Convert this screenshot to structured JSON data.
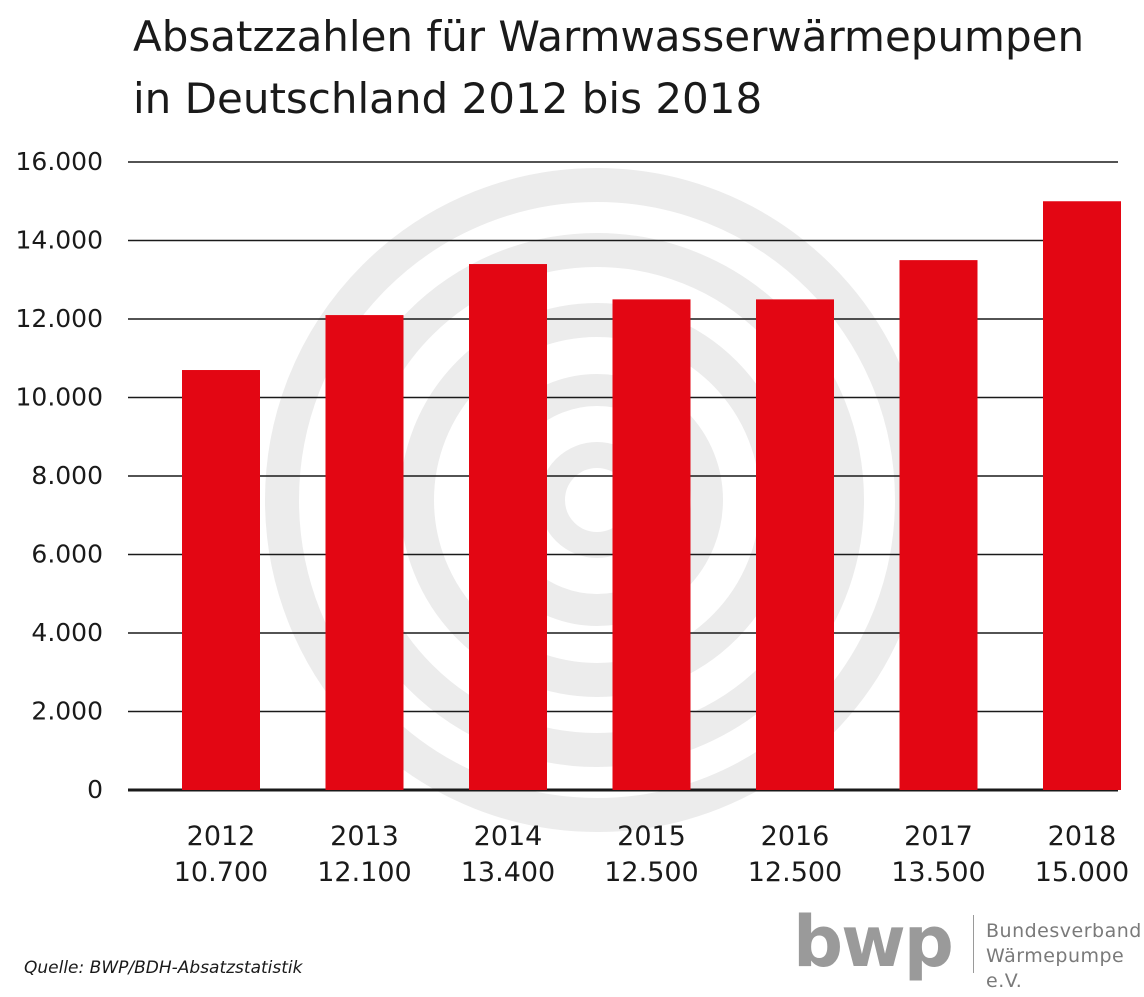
{
  "chart_data": {
    "type": "bar",
    "title_lines": [
      "Absatzzahlen für Warmwasserwärmepumpen",
      "in Deutschland 2012 bis 2018"
    ],
    "categories": [
      "2012",
      "2013",
      "2014",
      "2015",
      "2016",
      "2017",
      "2018"
    ],
    "value_labels": [
      "10.700",
      "12.100",
      "13.400",
      "12.500",
      "12.500",
      "13.500",
      "15.000"
    ],
    "values": [
      10700,
      12100,
      13400,
      12500,
      12500,
      13500,
      15000
    ],
    "yticks": [
      0,
      2000,
      4000,
      6000,
      8000,
      10000,
      12000,
      14000,
      16000
    ],
    "ytick_labels": [
      "0",
      "2.000",
      "4.000",
      "6.000",
      "8.000",
      "10.000",
      "12.000",
      "14.000",
      "16.000"
    ],
    "ylim": [
      0,
      16000
    ],
    "grid": true,
    "bar_color": "#e30613",
    "gridline_color": "#1a1a1a",
    "watermark_color": "#ececec"
  },
  "source": "Quelle: BWP/BDH-Absatzstatistik",
  "logo": {
    "mark": "bwp",
    "line1": "Bundesverband",
    "line2": "Wärmepumpe e.V.",
    "color": "#9a9a9a"
  }
}
